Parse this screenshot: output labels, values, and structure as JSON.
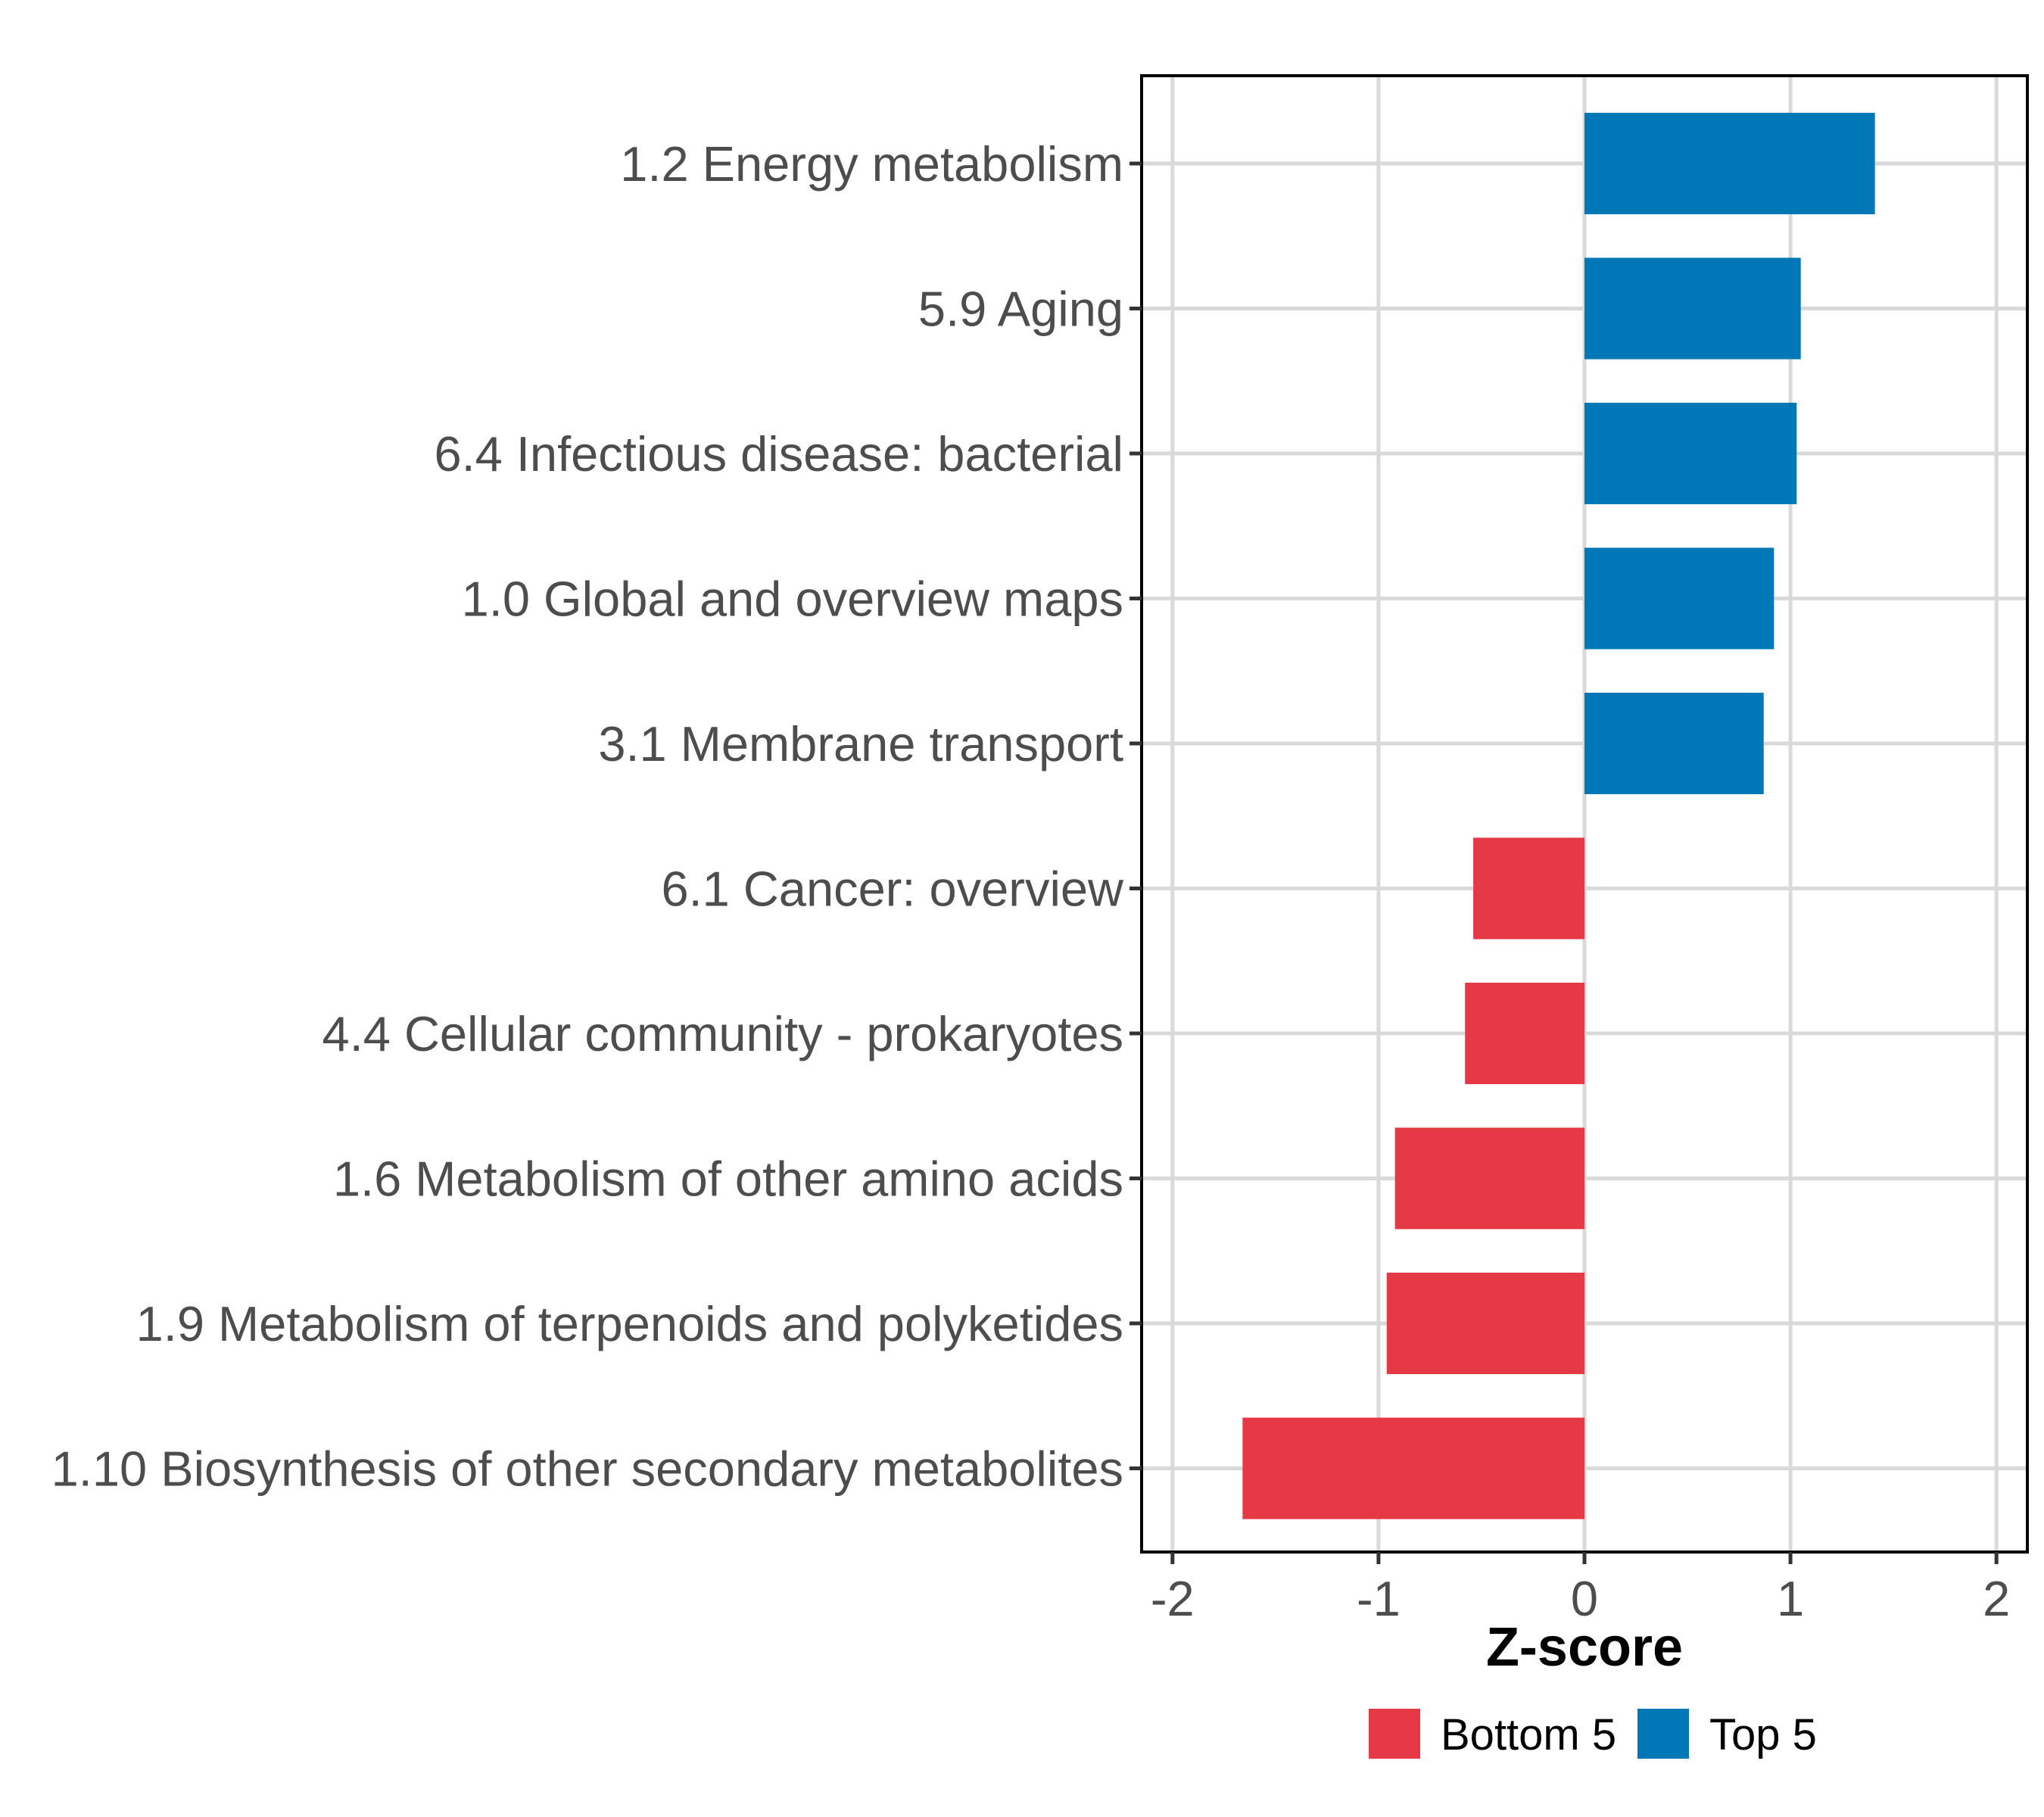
{
  "chart_data": {
    "type": "bar",
    "orientation": "horizontal",
    "categories": [
      "1.2 Energy metabolism",
      "5.9 Aging",
      "6.4 Infectious disease: bacterial",
      "1.0 Global and overview maps",
      "3.1 Membrane transport",
      "6.1 Cancer: overview",
      "4.4 Cellular community - prokaryotes",
      "1.6 Metabolism of other amino acids",
      "1.9 Metabolism of terpenoids and polyketides",
      "1.10 Biosynthesis of other secondary metabolites"
    ],
    "values": [
      1.41,
      1.05,
      1.03,
      0.92,
      0.87,
      -0.54,
      -0.58,
      -0.92,
      -0.96,
      -1.66
    ],
    "groups": [
      "Top 5",
      "Top 5",
      "Top 5",
      "Top 5",
      "Top 5",
      "Bottom 5",
      "Bottom 5",
      "Bottom 5",
      "Bottom 5",
      "Bottom 5"
    ],
    "xlabel": "Z-score",
    "ylabel": "",
    "xlim": [
      -2.15,
      2.15
    ],
    "xticks": [
      "-2",
      "-1",
      "0",
      "1",
      "2"
    ],
    "grid": true,
    "legend": {
      "position": "bottom",
      "entries": [
        {
          "label": "Bottom 5",
          "color": "#e63946"
        },
        {
          "label": "Top 5",
          "color": "#0077b6"
        }
      ]
    }
  }
}
